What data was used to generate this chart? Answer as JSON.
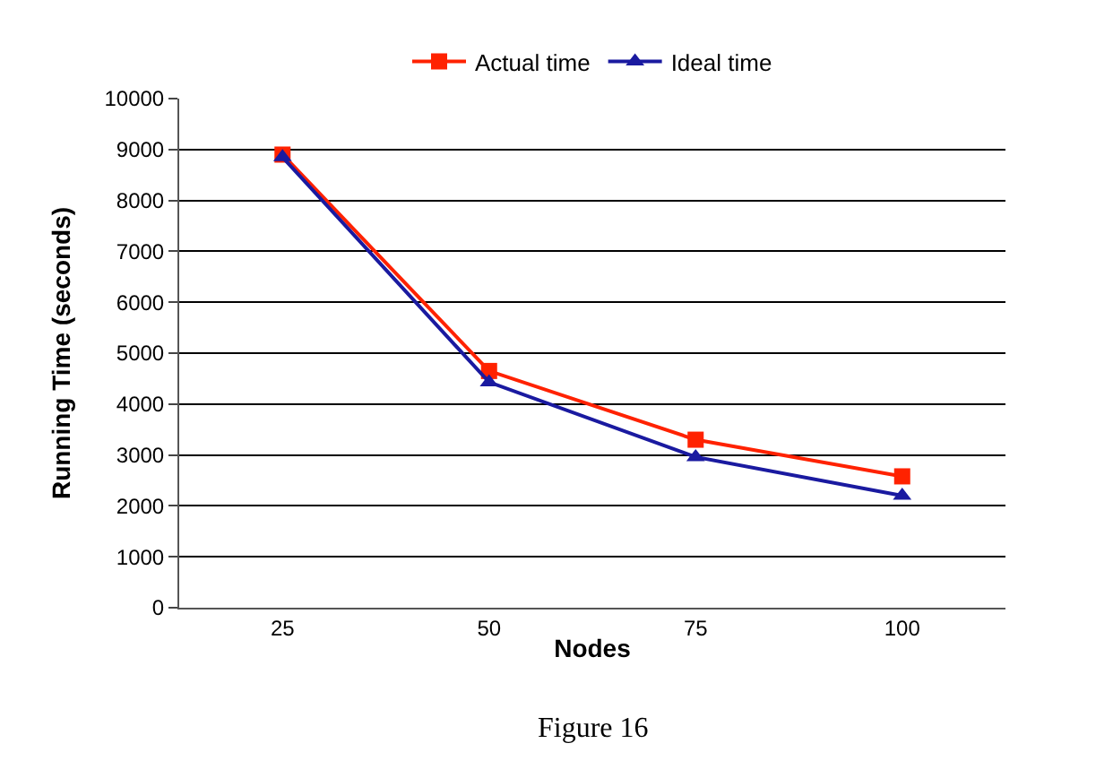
{
  "chart_data": {
    "type": "line",
    "categories": [
      "25",
      "50",
      "75",
      "100"
    ],
    "xlabel": "Nodes",
    "ylabel": "Running Time (seconds)",
    "series": [
      {
        "name": "Actual time",
        "color": "#ff2200",
        "values": [
          8900,
          4650,
          3300,
          2580
        ],
        "marker": "square"
      },
      {
        "name": "Ideal time",
        "color": "#1a1aa0",
        "values": [
          8850,
          4430,
          2960,
          2200
        ],
        "marker": "triangle"
      }
    ],
    "ylim": [
      0,
      10000
    ],
    "yticks": [
      0,
      1000,
      2000,
      3000,
      4000,
      5000,
      6000,
      7000,
      8000,
      9000,
      10000
    ],
    "grid": "y",
    "legend": "top",
    "line_style": "solid",
    "annotations": [
      "Figure 16"
    ]
  }
}
